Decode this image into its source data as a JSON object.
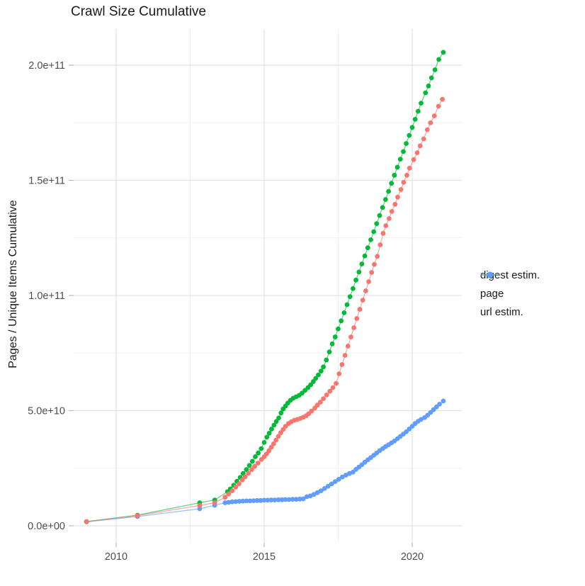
{
  "title": "Crawl Size Cumulative",
  "chart_data": {
    "type": "scatter",
    "title": "Crawl Size Cumulative",
    "xlabel": "",
    "ylabel": "Pages / Unique Items Cumulative",
    "x_tick_labels": [
      "2010",
      "2015",
      "2020"
    ],
    "x_tick_values": [
      2010,
      2015,
      2020
    ],
    "x_minor_tick_values": [
      2012.5,
      2017.5
    ],
    "y_tick_labels": [
      "0.0e+00",
      "5.0e+10",
      "1.0e+11",
      "1.5e+11",
      "2.0e+11"
    ],
    "y_tick_values_e10": [
      0,
      5,
      10,
      15,
      20
    ],
    "y_minor_values_e10": [
      2.5,
      7.5,
      12.5,
      17.5
    ],
    "xlim": [
      2008.5,
      2021.7
    ],
    "ylim_e10": [
      -0.7,
      21.6
    ],
    "value_scale_note": "point values are in units of 1e10 pages/items",
    "grid": "white background, light-gray major and minor gridlines",
    "legend_position": "right",
    "series": [
      {
        "name": "digest estim.",
        "color": "#F8766D",
        "points": [
          [
            2009.0,
            0.18
          ],
          [
            2010.72,
            0.44
          ],
          [
            2012.82,
            0.88
          ],
          [
            2013.33,
            1.0
          ],
          [
            2013.68,
            1.24
          ],
          [
            2013.8,
            1.38
          ],
          [
            2013.92,
            1.52
          ],
          [
            2014.04,
            1.68
          ],
          [
            2014.15,
            1.82
          ],
          [
            2014.26,
            1.99
          ],
          [
            2014.36,
            2.13
          ],
          [
            2014.47,
            2.28
          ],
          [
            2014.58,
            2.44
          ],
          [
            2014.68,
            2.58
          ],
          [
            2014.79,
            2.72
          ],
          [
            2014.91,
            2.88
          ],
          [
            2015.0,
            3.0
          ],
          [
            2015.08,
            3.12
          ],
          [
            2015.16,
            3.26
          ],
          [
            2015.24,
            3.41
          ],
          [
            2015.32,
            3.56
          ],
          [
            2015.4,
            3.72
          ],
          [
            2015.48,
            3.88
          ],
          [
            2015.56,
            4.04
          ],
          [
            2015.64,
            4.18
          ],
          [
            2015.72,
            4.32
          ],
          [
            2015.82,
            4.44
          ],
          [
            2015.92,
            4.52
          ],
          [
            2016.02,
            4.58
          ],
          [
            2016.12,
            4.62
          ],
          [
            2016.22,
            4.66
          ],
          [
            2016.32,
            4.71
          ],
          [
            2016.42,
            4.78
          ],
          [
            2016.5,
            4.86
          ],
          [
            2016.6,
            4.98
          ],
          [
            2016.71,
            5.11
          ],
          [
            2016.8,
            5.24
          ],
          [
            2016.9,
            5.37
          ],
          [
            2017.0,
            5.52
          ],
          [
            2017.11,
            5.68
          ],
          [
            2017.22,
            5.84
          ],
          [
            2017.32,
            6.0
          ],
          [
            2017.43,
            6.18
          ],
          [
            2017.53,
            6.6
          ],
          [
            2017.63,
            7.0
          ],
          [
            2017.73,
            7.4
          ],
          [
            2017.83,
            7.8
          ],
          [
            2017.93,
            8.2
          ],
          [
            2018.03,
            8.6
          ],
          [
            2018.13,
            9.0
          ],
          [
            2018.23,
            9.4
          ],
          [
            2018.33,
            9.8
          ],
          [
            2018.43,
            10.2
          ],
          [
            2018.53,
            10.6
          ],
          [
            2018.63,
            11.0
          ],
          [
            2018.72,
            11.35
          ],
          [
            2018.82,
            11.7
          ],
          [
            2018.92,
            12.2
          ],
          [
            2019.02,
            12.7
          ],
          [
            2019.11,
            13.03
          ],
          [
            2019.22,
            13.34
          ],
          [
            2019.31,
            13.65
          ],
          [
            2019.42,
            13.96
          ],
          [
            2019.51,
            14.27
          ],
          [
            2019.62,
            14.6
          ],
          [
            2019.71,
            14.91
          ],
          [
            2019.82,
            15.22
          ],
          [
            2019.91,
            15.53
          ],
          [
            2020.05,
            15.9
          ],
          [
            2020.17,
            16.2
          ],
          [
            2020.27,
            16.5
          ],
          [
            2020.39,
            16.8
          ],
          [
            2020.51,
            17.2
          ],
          [
            2020.62,
            17.5
          ],
          [
            2020.75,
            17.8
          ],
          [
            2020.89,
            18.22
          ],
          [
            2021.02,
            18.52
          ]
        ]
      },
      {
        "name": "page",
        "color": "#00BA38",
        "points": [
          [
            2009.0,
            0.18
          ],
          [
            2010.72,
            0.46
          ],
          [
            2012.82,
            1.0
          ],
          [
            2013.33,
            1.12
          ],
          [
            2013.76,
            1.48
          ],
          [
            2013.86,
            1.6
          ],
          [
            2013.97,
            1.76
          ],
          [
            2014.08,
            1.93
          ],
          [
            2014.19,
            2.1
          ],
          [
            2014.29,
            2.27
          ],
          [
            2014.4,
            2.44
          ],
          [
            2014.5,
            2.62
          ],
          [
            2014.6,
            2.8
          ],
          [
            2014.7,
            3.0
          ],
          [
            2014.8,
            3.16
          ],
          [
            2014.9,
            3.35
          ],
          [
            2015.0,
            3.62
          ],
          [
            2015.09,
            3.85
          ],
          [
            2015.17,
            4.02
          ],
          [
            2015.25,
            4.2
          ],
          [
            2015.33,
            4.37
          ],
          [
            2015.41,
            4.53
          ],
          [
            2015.49,
            4.68
          ],
          [
            2015.57,
            4.9
          ],
          [
            2015.64,
            5.07
          ],
          [
            2015.72,
            5.2
          ],
          [
            2015.8,
            5.33
          ],
          [
            2015.89,
            5.45
          ],
          [
            2015.98,
            5.54
          ],
          [
            2016.08,
            5.6
          ],
          [
            2016.18,
            5.66
          ],
          [
            2016.28,
            5.76
          ],
          [
            2016.38,
            5.88
          ],
          [
            2016.48,
            6.0
          ],
          [
            2016.57,
            6.12
          ],
          [
            2016.66,
            6.26
          ],
          [
            2016.74,
            6.4
          ],
          [
            2016.83,
            6.55
          ],
          [
            2016.92,
            6.72
          ],
          [
            2017.0,
            6.9
          ],
          [
            2017.1,
            7.2
          ],
          [
            2017.2,
            7.55
          ],
          [
            2017.3,
            7.9
          ],
          [
            2017.4,
            8.2
          ],
          [
            2017.5,
            8.55
          ],
          [
            2017.6,
            8.9
          ],
          [
            2017.7,
            9.25
          ],
          [
            2017.8,
            9.6
          ],
          [
            2017.9,
            9.95
          ],
          [
            2018.0,
            10.3
          ],
          [
            2018.1,
            10.67
          ],
          [
            2018.2,
            11.02
          ],
          [
            2018.3,
            11.37
          ],
          [
            2018.4,
            11.72
          ],
          [
            2018.5,
            12.07
          ],
          [
            2018.6,
            12.42
          ],
          [
            2018.7,
            12.77
          ],
          [
            2018.8,
            13.12
          ],
          [
            2018.9,
            13.47
          ],
          [
            2019.0,
            13.82
          ],
          [
            2019.1,
            14.17
          ],
          [
            2019.2,
            14.52
          ],
          [
            2019.3,
            14.87
          ],
          [
            2019.4,
            15.22
          ],
          [
            2019.5,
            15.57
          ],
          [
            2019.6,
            15.92
          ],
          [
            2019.7,
            16.25
          ],
          [
            2019.8,
            16.6
          ],
          [
            2019.9,
            16.95
          ],
          [
            2020.0,
            17.3
          ],
          [
            2020.1,
            17.65
          ],
          [
            2020.2,
            18.0
          ],
          [
            2020.3,
            18.35
          ],
          [
            2020.45,
            18.8
          ],
          [
            2020.55,
            19.1
          ],
          [
            2020.65,
            19.45
          ],
          [
            2020.77,
            19.8
          ],
          [
            2020.9,
            20.25
          ],
          [
            2021.05,
            20.56
          ]
        ]
      },
      {
        "name": "url estim.",
        "color": "#619CFF",
        "points": [
          [
            2009.0,
            0.17
          ],
          [
            2010.72,
            0.4
          ],
          [
            2012.82,
            0.74
          ],
          [
            2013.33,
            0.89
          ],
          [
            2013.68,
            1.0
          ],
          [
            2013.8,
            1.02
          ],
          [
            2013.92,
            1.04
          ],
          [
            2014.04,
            1.05
          ],
          [
            2014.16,
            1.06
          ],
          [
            2014.28,
            1.07
          ],
          [
            2014.4,
            1.08
          ],
          [
            2014.52,
            1.08
          ],
          [
            2014.64,
            1.09
          ],
          [
            2014.76,
            1.1
          ],
          [
            2014.88,
            1.1
          ],
          [
            2015.0,
            1.11
          ],
          [
            2015.12,
            1.11
          ],
          [
            2015.24,
            1.12
          ],
          [
            2015.36,
            1.12
          ],
          [
            2015.48,
            1.13
          ],
          [
            2015.6,
            1.13
          ],
          [
            2015.72,
            1.14
          ],
          [
            2015.84,
            1.14
          ],
          [
            2015.96,
            1.15
          ],
          [
            2016.08,
            1.15
          ],
          [
            2016.2,
            1.16
          ],
          [
            2016.32,
            1.17
          ],
          [
            2016.44,
            1.26
          ],
          [
            2016.56,
            1.3
          ],
          [
            2016.68,
            1.36
          ],
          [
            2016.8,
            1.44
          ],
          [
            2016.92,
            1.52
          ],
          [
            2017.04,
            1.62
          ],
          [
            2017.16,
            1.72
          ],
          [
            2017.28,
            1.82
          ],
          [
            2017.4,
            1.92
          ],
          [
            2017.52,
            2.02
          ],
          [
            2017.64,
            2.12
          ],
          [
            2017.76,
            2.2
          ],
          [
            2017.88,
            2.27
          ],
          [
            2018.0,
            2.33
          ],
          [
            2018.1,
            2.45
          ],
          [
            2018.2,
            2.55
          ],
          [
            2018.3,
            2.65
          ],
          [
            2018.4,
            2.76
          ],
          [
            2018.5,
            2.86
          ],
          [
            2018.6,
            2.96
          ],
          [
            2018.7,
            3.06
          ],
          [
            2018.8,
            3.16
          ],
          [
            2018.9,
            3.26
          ],
          [
            2019.0,
            3.35
          ],
          [
            2019.1,
            3.44
          ],
          [
            2019.2,
            3.52
          ],
          [
            2019.3,
            3.6
          ],
          [
            2019.4,
            3.68
          ],
          [
            2019.5,
            3.78
          ],
          [
            2019.6,
            3.88
          ],
          [
            2019.7,
            3.98
          ],
          [
            2019.8,
            4.08
          ],
          [
            2019.9,
            4.2
          ],
          [
            2020.0,
            4.32
          ],
          [
            2020.1,
            4.44
          ],
          [
            2020.2,
            4.54
          ],
          [
            2020.3,
            4.62
          ],
          [
            2020.42,
            4.7
          ],
          [
            2020.52,
            4.8
          ],
          [
            2020.62,
            4.92
          ],
          [
            2020.72,
            5.04
          ],
          [
            2020.82,
            5.16
          ],
          [
            2020.92,
            5.28
          ],
          [
            2021.05,
            5.42
          ]
        ]
      }
    ]
  },
  "colors": {
    "background": "#ffffff",
    "grid_major": "#e2e2e2",
    "grid_minor": "#f0f0f0",
    "tick_mark": "#b8b8b8",
    "tick_label": "#4d4d4d",
    "text": "#1a1a1a",
    "series_digest": "#F8766D",
    "series_page": "#00BA38",
    "series_url": "#619CFF"
  }
}
